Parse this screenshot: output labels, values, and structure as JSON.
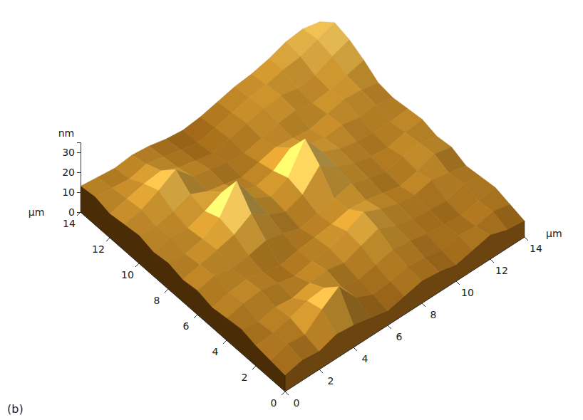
{
  "chart_data": {
    "type": "surface",
    "title": "(b)",
    "x_label": "µm",
    "y_label": "µm",
    "z_label": "nm",
    "x": [
      0,
      1,
      2,
      3,
      4,
      5,
      6,
      7,
      8,
      9,
      10,
      11,
      12,
      13,
      14
    ],
    "y": [
      0,
      1,
      2,
      3,
      4,
      5,
      6,
      7,
      8,
      9,
      10,
      11,
      12,
      13,
      14
    ],
    "values": [
      [
        8,
        10,
        9,
        12,
        11,
        9,
        7,
        9,
        11,
        10,
        8,
        10,
        12,
        9,
        8
      ],
      [
        9,
        12,
        11,
        18,
        24,
        13,
        9,
        10,
        12,
        11,
        9,
        11,
        10,
        12,
        10
      ],
      [
        10,
        11,
        13,
        16,
        17,
        12,
        10,
        12,
        14,
        13,
        11,
        10,
        9,
        11,
        12
      ],
      [
        12,
        10,
        12,
        11,
        13,
        14,
        12,
        15,
        18,
        14,
        12,
        11,
        10,
        13,
        11
      ],
      [
        11,
        13,
        14,
        12,
        10,
        12,
        13,
        16,
        20,
        16,
        13,
        12,
        14,
        12,
        10
      ],
      [
        10,
        12,
        13,
        11,
        9,
        11,
        12,
        13,
        15,
        14,
        12,
        10,
        12,
        15,
        13
      ],
      [
        12,
        14,
        12,
        13,
        15,
        13,
        10,
        12,
        14,
        16,
        13,
        11,
        13,
        14,
        12
      ],
      [
        11,
        13,
        15,
        17,
        22,
        16,
        12,
        15,
        24,
        18,
        14,
        12,
        11,
        13,
        14
      ],
      [
        13,
        12,
        14,
        19,
        32,
        18,
        13,
        17,
        31,
        19,
        15,
        13,
        12,
        12,
        13
      ],
      [
        12,
        14,
        13,
        16,
        20,
        15,
        12,
        14,
        20,
        16,
        14,
        15,
        13,
        14,
        12
      ],
      [
        14,
        13,
        15,
        18,
        14,
        12,
        10,
        12,
        14,
        13,
        12,
        14,
        16,
        15,
        13
      ],
      [
        13,
        15,
        19,
        24,
        15,
        13,
        11,
        10,
        12,
        14,
        15,
        13,
        14,
        16,
        18
      ],
      [
        12,
        14,
        16,
        17,
        13,
        11,
        9,
        11,
        13,
        15,
        16,
        14,
        15,
        19,
        22
      ],
      [
        14,
        13,
        12,
        14,
        12,
        10,
        8,
        10,
        12,
        14,
        15,
        17,
        18,
        21,
        24
      ],
      [
        13,
        12,
        11,
        12,
        11,
        9,
        8,
        9,
        11,
        13,
        14,
        16,
        19,
        20,
        18
      ]
    ],
    "xlim": [
      0,
      14
    ],
    "xticks": [
      0,
      2,
      4,
      6,
      8,
      10,
      12,
      14
    ],
    "ylim": [
      0,
      14
    ],
    "yticks": [
      0,
      2,
      4,
      6,
      8,
      10,
      12,
      14
    ],
    "zlim": [
      0,
      35
    ],
    "zticks": [
      0,
      10,
      20,
      30
    ]
  }
}
